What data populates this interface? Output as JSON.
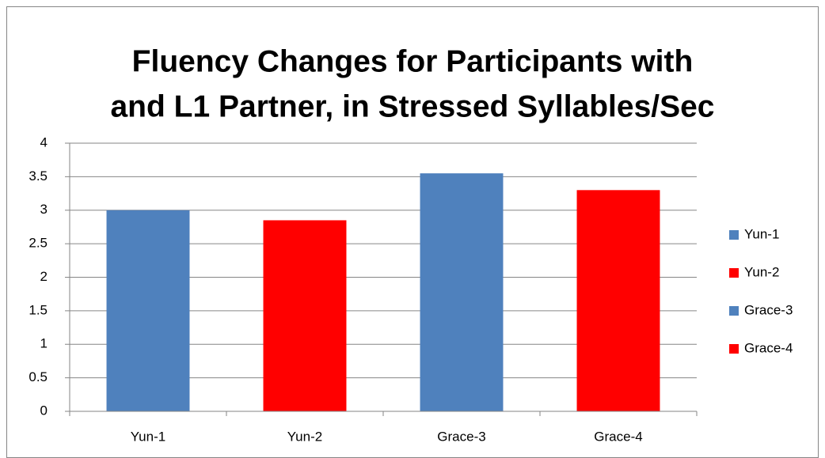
{
  "chart_data": {
    "type": "bar",
    "title": [
      "Fluency Changes for Participants with",
      "and L1 Partner, in Stressed Syllables/Sec"
    ],
    "categories": [
      "Yun-1",
      "Yun-2",
      "Grace-3",
      "Grace-4"
    ],
    "values": [
      3.0,
      2.85,
      3.55,
      3.3
    ],
    "colors": [
      "#4f81bd",
      "#ff0000",
      "#4f81bd",
      "#ff0000"
    ],
    "ylim": [
      0,
      4
    ],
    "yticks": [
      0,
      0.5,
      1,
      1.5,
      2,
      2.5,
      3,
      3.5,
      4
    ],
    "grid": true,
    "legend": "right"
  }
}
